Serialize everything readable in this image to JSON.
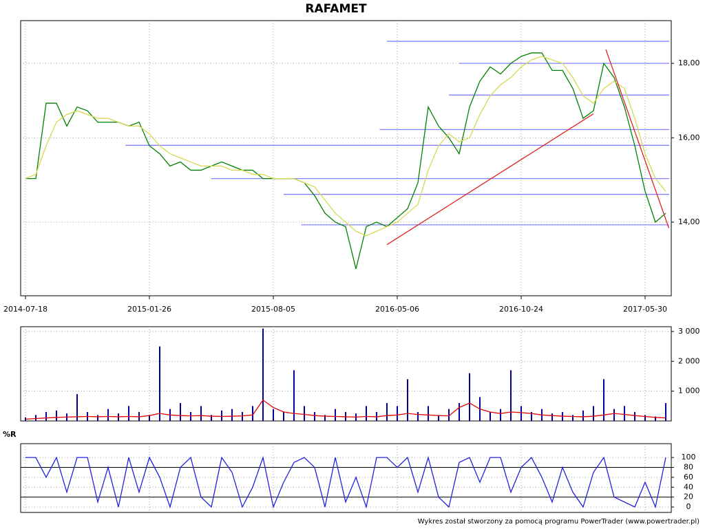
{
  "chart_data": [
    {
      "type": "line",
      "title": "RAFAMET",
      "log": true,
      "grid": true,
      "categories": [
        "2014-07-18",
        null,
        null,
        null,
        null,
        null,
        null,
        null,
        null,
        null,
        null,
        null,
        "2015-01-26",
        null,
        null,
        null,
        null,
        null,
        null,
        null,
        null,
        null,
        null,
        null,
        "2015-08-05",
        null,
        null,
        null,
        null,
        null,
        null,
        null,
        null,
        null,
        null,
        null,
        "2016-05-06",
        null,
        null,
        null,
        null,
        null,
        null,
        null,
        null,
        null,
        null,
        null,
        "2016-10-24",
        null,
        null,
        null,
        null,
        null,
        null,
        null,
        null,
        null,
        null,
        null,
        "2017-05-30",
        null,
        null
      ],
      "ylim": [
        12.46,
        19.26
      ],
      "yticks": [
        {
          "value": 14,
          "label": "14,00"
        },
        {
          "value": 16,
          "label": "16,00"
        },
        {
          "value": 18,
          "label": "18,00"
        }
      ],
      "series": [
        {
          "color": "#008000",
          "values": [
            15.0,
            15.0,
            16.9,
            16.9,
            16.3,
            16.8,
            16.7,
            16.4,
            16.4,
            16.4,
            16.3,
            16.4,
            15.8,
            15.6,
            15.3,
            15.4,
            15.2,
            15.2,
            15.3,
            15.4,
            15.3,
            15.2,
            15.2,
            15.0,
            15.0,
            15.0,
            15.0,
            14.9,
            14.6,
            14.2,
            14.0,
            13.9,
            13.0,
            13.9,
            14.0,
            13.9,
            14.1,
            14.3,
            14.9,
            16.8,
            16.3,
            16.0,
            15.6,
            16.8,
            17.5,
            17.9,
            17.7,
            18.0,
            18.2,
            18.3,
            18.3,
            17.8,
            17.8,
            17.3,
            16.5,
            16.7,
            18.0,
            17.6,
            16.8,
            15.8,
            14.7,
            14.0,
            14.2
          ]
        },
        {
          "color": "#d8d850",
          "values": [
            15.0,
            15.1,
            15.8,
            16.4,
            16.6,
            16.7,
            16.6,
            16.5,
            16.5,
            16.4,
            16.3,
            16.3,
            16.1,
            15.8,
            15.6,
            15.5,
            15.4,
            15.3,
            15.3,
            15.3,
            15.2,
            15.2,
            15.1,
            15.1,
            15.0,
            15.0,
            15.0,
            14.9,
            14.8,
            14.5,
            14.2,
            14.0,
            13.8,
            13.7,
            13.8,
            13.9,
            14.0,
            14.2,
            14.4,
            15.2,
            15.8,
            16.1,
            15.9,
            16.0,
            16.6,
            17.1,
            17.4,
            17.6,
            17.9,
            18.1,
            18.2,
            18.1,
            18.0,
            17.6,
            17.1,
            16.9,
            17.3,
            17.5,
            17.3,
            16.5,
            15.6,
            15.0,
            14.7
          ]
        }
      ],
      "hlines": {
        "color": "#8080ff",
        "levels": [
          {
            "value": 18.64,
            "start": 35
          },
          {
            "value": 18.0,
            "start": 42
          },
          {
            "value": 17.12,
            "start": 41
          },
          {
            "value": 16.21,
            "start": 34.3
          },
          {
            "value": 15.81,
            "start": 9.7
          },
          {
            "value": 15.0,
            "start": 18
          },
          {
            "value": 14.63,
            "start": 25
          },
          {
            "value": 13.94,
            "start": 26.7
          }
        ]
      },
      "trendlines": {
        "color": "#e02020",
        "lines": [
          {
            "x": [
              35,
              55
            ],
            "y": [
              13.51,
              16.62
            ]
          },
          {
            "x": [
              56.2,
              62.3
            ],
            "y": [
              18.4,
              13.87
            ]
          }
        ]
      }
    },
    {
      "type": "bar",
      "grid": true,
      "ylim": [
        0,
        3160
      ],
      "yticks": [
        {
          "value": 1000,
          "label": "1 000"
        },
        {
          "value": 2000,
          "label": "2 000"
        },
        {
          "value": 3000,
          "label": "3 000"
        }
      ],
      "series": [
        {
          "color": "#0000a0",
          "values": [
            120,
            200,
            300,
            350,
            250,
            900,
            300,
            200,
            400,
            250,
            500,
            300,
            200,
            2500,
            400,
            600,
            300,
            500,
            200,
            350,
            400,
            300,
            500,
            3100,
            400,
            300,
            1700,
            500,
            300,
            200,
            400,
            300,
            250,
            500,
            300,
            600,
            500,
            1400,
            300,
            500,
            200,
            400,
            600,
            1600,
            800,
            300,
            400,
            1700,
            500,
            300,
            400,
            250,
            300,
            200,
            350,
            500,
            1400,
            400,
            500,
            300,
            200,
            150,
            600
          ]
        },
        {
          "type": "line",
          "color": "#e00000",
          "values": [
            60,
            80,
            100,
            120,
            130,
            140,
            150,
            140,
            150,
            140,
            150,
            140,
            180,
            250,
            200,
            180,
            170,
            180,
            160,
            150,
            160,
            170,
            200,
            700,
            450,
            300,
            250,
            220,
            180,
            160,
            150,
            140,
            130,
            150,
            140,
            180,
            200,
            250,
            220,
            200,
            180,
            170,
            450,
            600,
            400,
            300,
            250,
            300,
            280,
            250,
            200,
            180,
            160,
            150,
            140,
            160,
            200,
            250,
            220,
            180,
            150,
            120,
            100
          ]
        }
      ]
    },
    {
      "type": "line",
      "title": "%R",
      "grid": true,
      "ylim": [
        -11,
        128
      ],
      "yticks": [
        0,
        20,
        40,
        60,
        80,
        100
      ],
      "levels": [
        20,
        80
      ],
      "series": [
        {
          "color": "#2020e0",
          "values": [
            100,
            100,
            60,
            100,
            30,
            100,
            100,
            10,
            80,
            0,
            100,
            30,
            100,
            60,
            0,
            80,
            100,
            20,
            0,
            100,
            70,
            0,
            40,
            100,
            0,
            50,
            90,
            100,
            80,
            0,
            100,
            10,
            60,
            0,
            100,
            100,
            80,
            100,
            30,
            100,
            20,
            0,
            90,
            100,
            50,
            100,
            100,
            30,
            80,
            100,
            60,
            10,
            80,
            30,
            0,
            70,
            100,
            20,
            10,
            0,
            50,
            0,
            100
          ]
        }
      ]
    }
  ],
  "footer": "Wykres został stworzony za pomocą programu PowerTrader (www.powertrader.pl)"
}
